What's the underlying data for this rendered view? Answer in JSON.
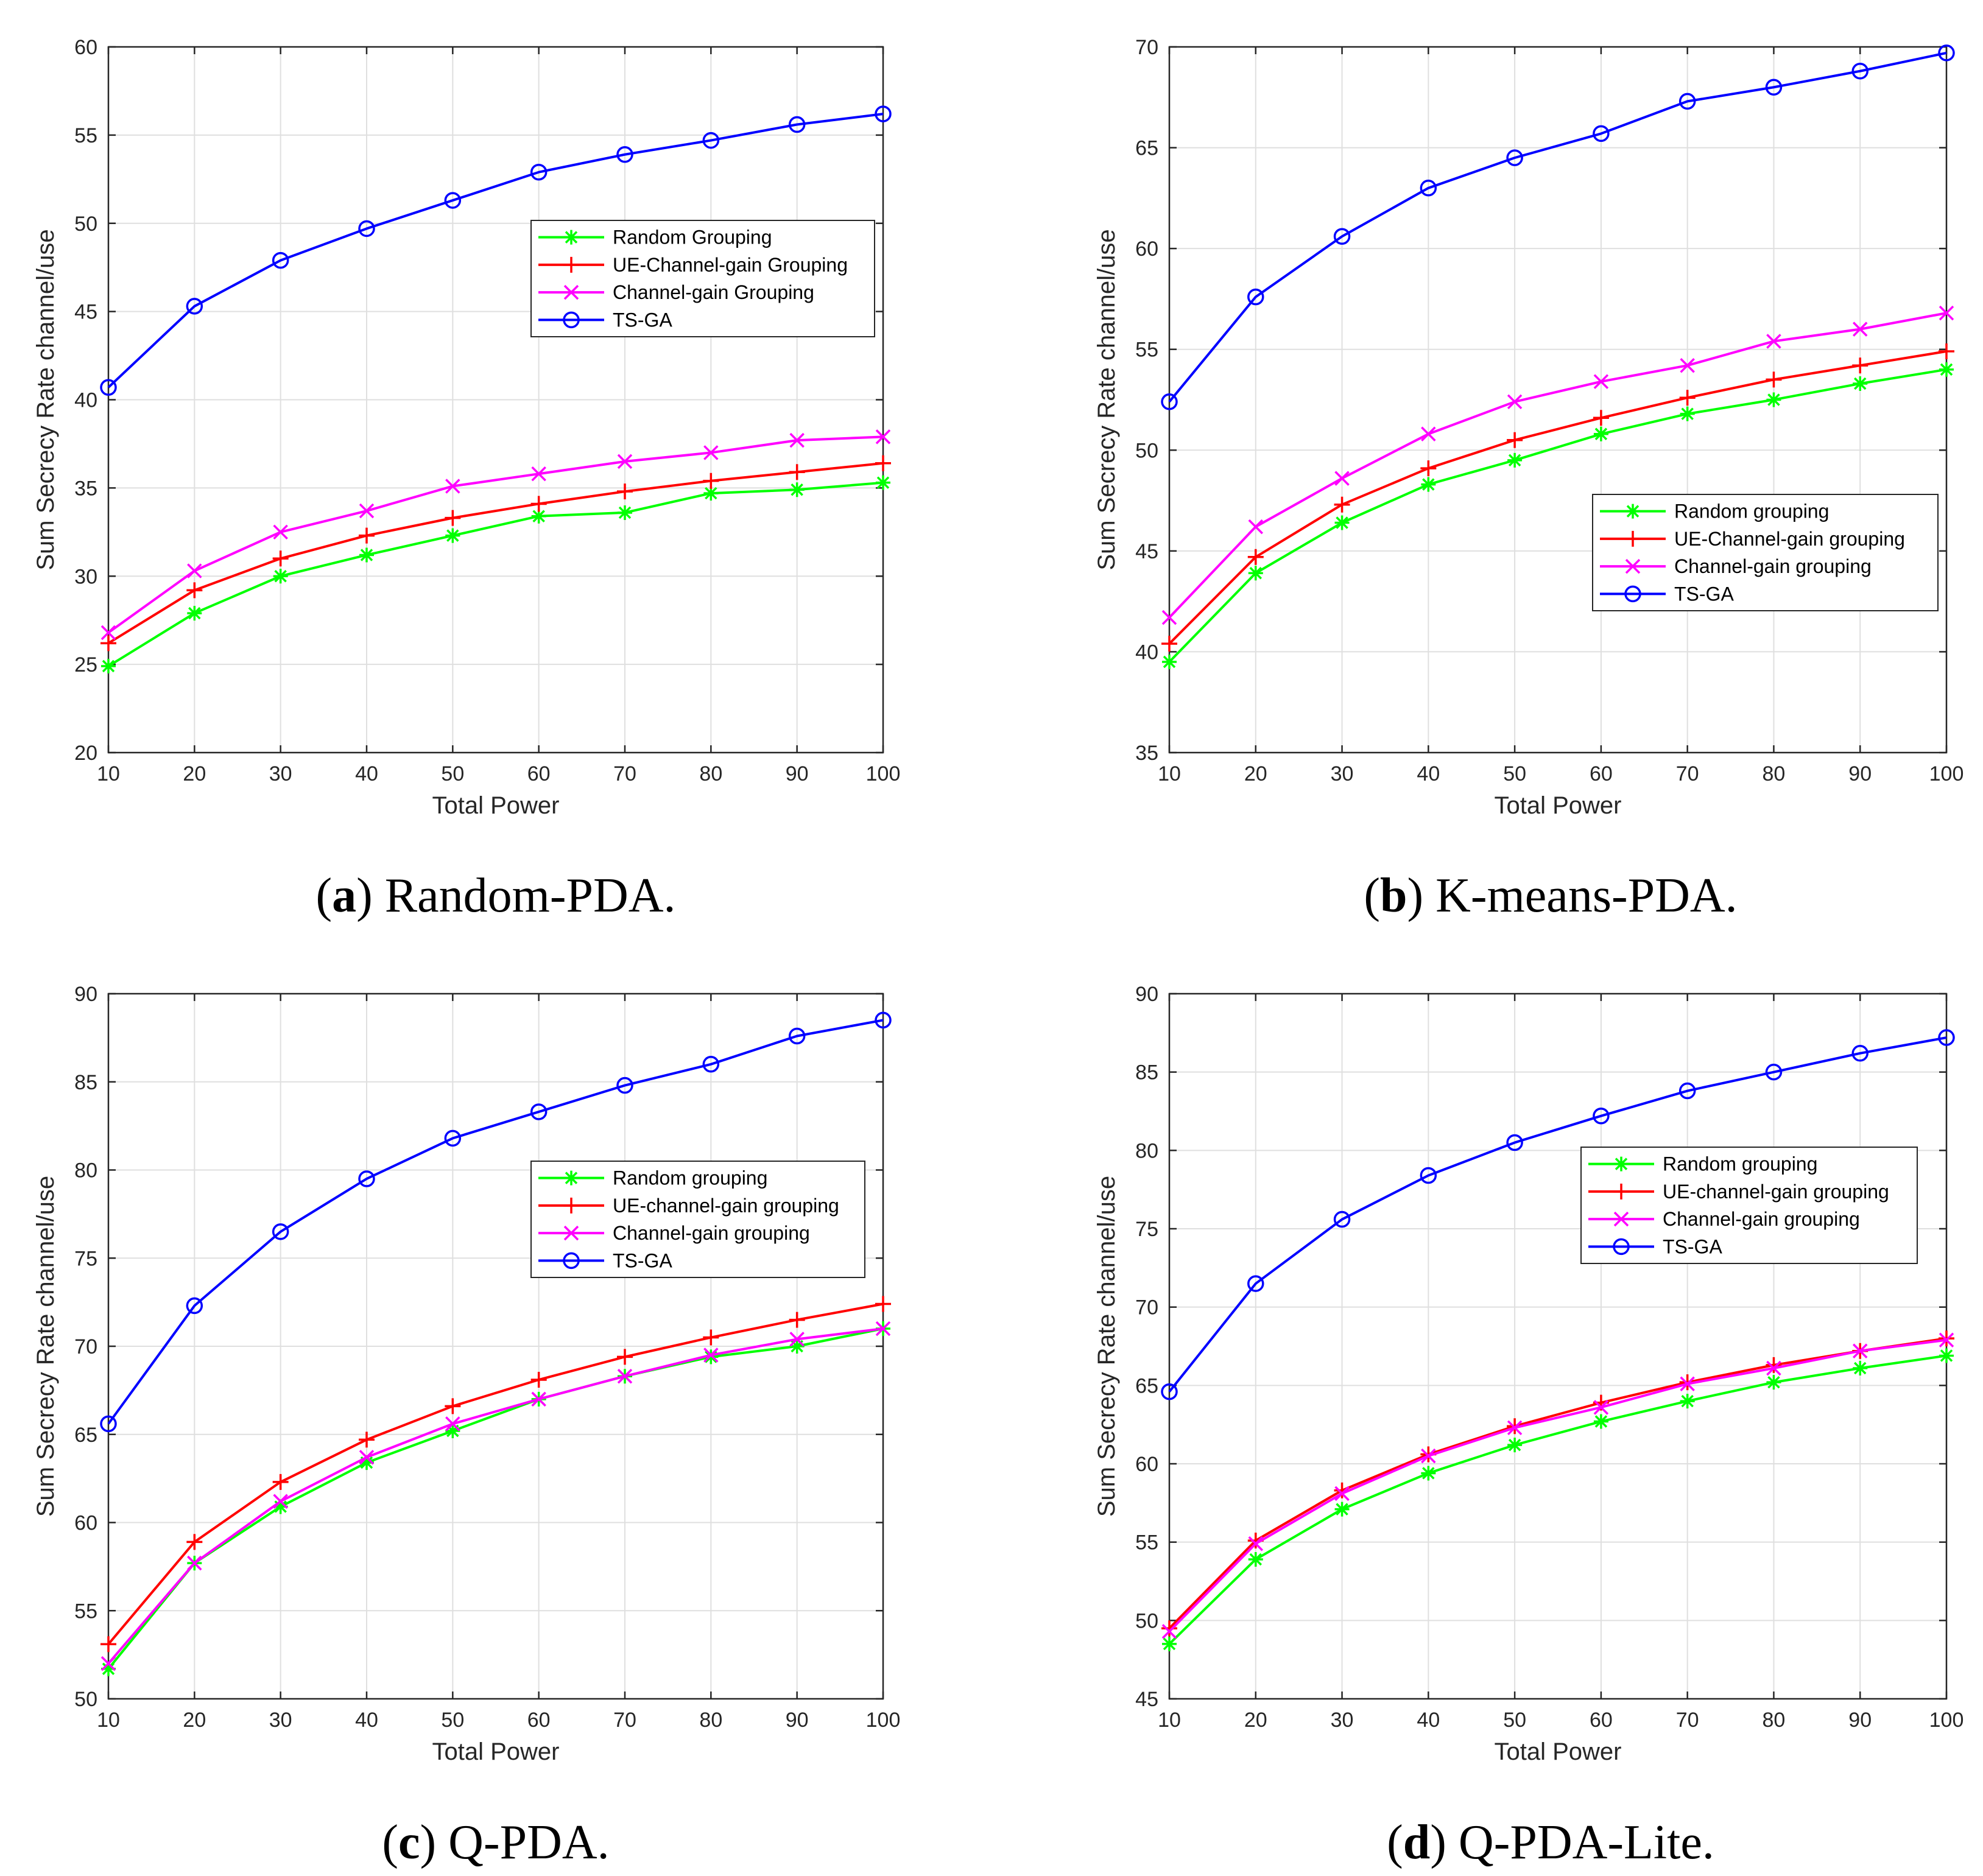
{
  "chart_data": [
    {
      "type": "line",
      "caption_letter": "a",
      "caption_text": "Random-PDA.",
      "xlabel": "Total Power",
      "ylabel": "Sum Secrecy Rate channel/use",
      "x": [
        10,
        20,
        30,
        40,
        50,
        60,
        70,
        80,
        90,
        100
      ],
      "xlim": [
        10,
        100
      ],
      "ylim": [
        20,
        60
      ],
      "yticks": [
        20,
        25,
        30,
        35,
        40,
        45,
        50,
        55,
        60
      ],
      "grid": true,
      "legend_position": "upper-right",
      "series": [
        {
          "name": "Random Grouping",
          "color": "#00ff00",
          "marker": "star",
          "values": [
            24.9,
            27.9,
            30.0,
            31.2,
            32.3,
            33.4,
            33.6,
            34.7,
            34.9,
            35.3
          ]
        },
        {
          "name": "UE-Channel-gain Grouping",
          "color": "#ff0000",
          "marker": "plus",
          "values": [
            26.2,
            29.2,
            31.0,
            32.3,
            33.3,
            34.1,
            34.8,
            35.4,
            35.9,
            36.4
          ]
        },
        {
          "name": "Channel-gain Grouping",
          "color": "#ff00ff",
          "marker": "x",
          "values": [
            26.8,
            30.3,
            32.5,
            33.7,
            35.1,
            35.8,
            36.5,
            37.0,
            37.7,
            37.9
          ]
        },
        {
          "name": "TS-GA",
          "color": "#0000ff",
          "marker": "circle",
          "values": [
            40.7,
            45.3,
            47.9,
            49.7,
            51.3,
            52.9,
            53.9,
            54.7,
            55.6,
            56.2
          ]
        }
      ]
    },
    {
      "type": "line",
      "caption_letter": "b",
      "caption_text": "K-means-PDA.",
      "xlabel": "Total Power",
      "ylabel": "Sum Secrecy Rate channel/use",
      "x": [
        10,
        20,
        30,
        40,
        50,
        60,
        70,
        80,
        90,
        100
      ],
      "xlim": [
        10,
        100
      ],
      "ylim": [
        35,
        70
      ],
      "yticks": [
        35,
        40,
        45,
        50,
        55,
        60,
        65,
        70
      ],
      "grid": true,
      "legend_position": "middle-right",
      "series": [
        {
          "name": "Random grouping",
          "color": "#00ff00",
          "marker": "star",
          "values": [
            39.5,
            43.9,
            46.4,
            48.3,
            49.5,
            50.8,
            51.8,
            52.5,
            53.3,
            54.0
          ]
        },
        {
          "name": "UE-Channel-gain grouping",
          "color": "#ff0000",
          "marker": "plus",
          "values": [
            40.4,
            44.7,
            47.3,
            49.1,
            50.5,
            51.6,
            52.6,
            53.5,
            54.2,
            54.9
          ]
        },
        {
          "name": "Channel-gain grouping",
          "color": "#ff00ff",
          "marker": "x",
          "values": [
            41.7,
            46.2,
            48.6,
            50.8,
            52.4,
            53.4,
            54.2,
            55.4,
            56.0,
            56.8
          ]
        },
        {
          "name": "TS-GA",
          "color": "#0000ff",
          "marker": "circle",
          "values": [
            52.4,
            57.6,
            60.6,
            63.0,
            64.5,
            65.7,
            67.3,
            68.0,
            68.8,
            69.7
          ]
        }
      ]
    },
    {
      "type": "line",
      "caption_letter": "c",
      "caption_text": "Q-PDA.",
      "xlabel": "Total Power",
      "ylabel": "Sum Secrecy Rate channel/use",
      "x": [
        10,
        20,
        30,
        40,
        50,
        60,
        70,
        80,
        90,
        100
      ],
      "xlim": [
        10,
        100
      ],
      "ylim": [
        50,
        90
      ],
      "yticks": [
        50,
        55,
        60,
        65,
        70,
        75,
        80,
        85,
        90
      ],
      "grid": true,
      "legend_position": "upper-right",
      "series": [
        {
          "name": "Random grouping",
          "color": "#00ff00",
          "marker": "star",
          "values": [
            51.7,
            57.7,
            60.9,
            63.4,
            65.2,
            67.0,
            68.3,
            69.4,
            70.0,
            71.0
          ]
        },
        {
          "name": "UE-channel-gain grouping",
          "color": "#ff0000",
          "marker": "plus",
          "values": [
            53.1,
            58.9,
            62.3,
            64.7,
            66.6,
            68.1,
            69.4,
            70.5,
            71.5,
            72.4
          ]
        },
        {
          "name": "Channel-gain grouping",
          "color": "#ff00ff",
          "marker": "x",
          "values": [
            52.0,
            57.7,
            61.2,
            63.7,
            65.6,
            67.0,
            68.3,
            69.5,
            70.4,
            71.0
          ]
        },
        {
          "name": "TS-GA",
          "color": "#0000ff",
          "marker": "circle",
          "values": [
            65.6,
            72.3,
            76.5,
            79.5,
            81.8,
            83.3,
            84.8,
            86.0,
            87.6,
            88.5
          ]
        }
      ]
    },
    {
      "type": "line",
      "caption_letter": "d",
      "caption_text": "Q-PDA-Lite.",
      "xlabel": "Total Power",
      "ylabel": "Sum Secrecy Rate channel/use",
      "x": [
        10,
        20,
        30,
        40,
        50,
        60,
        70,
        80,
        90,
        100
      ],
      "xlim": [
        10,
        100
      ],
      "ylim": [
        45,
        90
      ],
      "yticks": [
        45,
        50,
        55,
        60,
        65,
        70,
        75,
        80,
        85,
        90
      ],
      "grid": true,
      "legend_position": "upper-right",
      "series": [
        {
          "name": "Random grouping",
          "color": "#00ff00",
          "marker": "star",
          "values": [
            48.5,
            53.9,
            57.1,
            59.4,
            61.2,
            62.7,
            64.0,
            65.2,
            66.1,
            66.9
          ]
        },
        {
          "name": "UE-channel-gain grouping",
          "color": "#ff0000",
          "marker": "plus",
          "values": [
            49.5,
            55.1,
            58.3,
            60.6,
            62.4,
            63.9,
            65.2,
            66.3,
            67.2,
            68.0
          ]
        },
        {
          "name": "Channel-gain grouping",
          "color": "#ff00ff",
          "marker": "x",
          "values": [
            49.3,
            54.9,
            58.1,
            60.5,
            62.3,
            63.6,
            65.1,
            66.1,
            67.2,
            67.9
          ]
        },
        {
          "name": "TS-GA",
          "color": "#0000ff",
          "marker": "circle",
          "values": [
            64.6,
            71.5,
            75.6,
            78.4,
            80.5,
            82.2,
            83.8,
            85.0,
            86.2,
            87.2
          ]
        }
      ]
    }
  ]
}
